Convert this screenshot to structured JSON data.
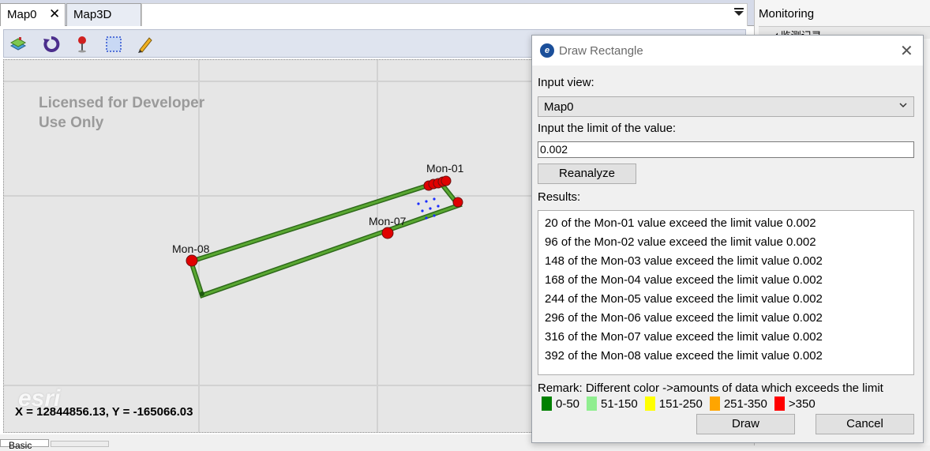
{
  "tabs": {
    "map0_label": "Map0",
    "map0_close": "✕",
    "map3d_label": "Map3D",
    "overflow_icon": "menu-dropdown-icon"
  },
  "map": {
    "toolbar_icons": [
      "layers-icon",
      "refresh-icon",
      "pin-icon",
      "select-rectangle-icon",
      "pencil-icon"
    ],
    "license_line1": "Licensed for Developer",
    "license_line2": "Use Only",
    "esri_logo": "esri",
    "coordinates": "X = 12844856.13, Y = -165066.03",
    "stations": [
      {
        "name": "Mon-01"
      },
      {
        "name": "Mon-07"
      },
      {
        "name": "Mon-08"
      }
    ],
    "colors": {
      "outline": "#4a8c2a",
      "marker": "#e00000",
      "dots": "#1a2cff"
    }
  },
  "monitor": {
    "title": "Monitoring",
    "tree_item": "◢ 监测记录",
    "basic": "Basic",
    "bottom_tab": "Basic"
  },
  "dialog": {
    "title": "Draw Rectangle",
    "close": "✕",
    "input_view_label": "Input view:",
    "input_view_value": "Map0",
    "limit_label": "Input the limit of the value:",
    "limit_value": "0.002",
    "reanalyze_label": "Reanalyze",
    "results_label": "Results:",
    "results": [
      "20 of the Mon-01 value exceed the limit value 0.002",
      "96 of the Mon-02 value exceed the limit value 0.002",
      "148 of the Mon-03 value exceed the limit value 0.002",
      "168 of the Mon-04 value exceed the limit value 0.002",
      "244 of the Mon-05 value exceed the limit value 0.002",
      "296 of the Mon-06 value exceed the limit value 0.002",
      "316 of the Mon-07 value exceed the limit value 0.002",
      "392 of the Mon-08 value exceed the limit value 0.002"
    ],
    "remark": "Remark: Different color ->amounts of data which exceeds the limit",
    "legend": [
      {
        "label": "0-50",
        "color": "#008000"
      },
      {
        "label": "51-150",
        "color": "#90ee90"
      },
      {
        "label": "151-250",
        "color": "#ffff00"
      },
      {
        "label": "251-350",
        "color": "#ffa500"
      },
      {
        "label": ">350",
        "color": "#ff0000"
      }
    ],
    "draw_label": "Draw",
    "cancel_label": "Cancel"
  }
}
